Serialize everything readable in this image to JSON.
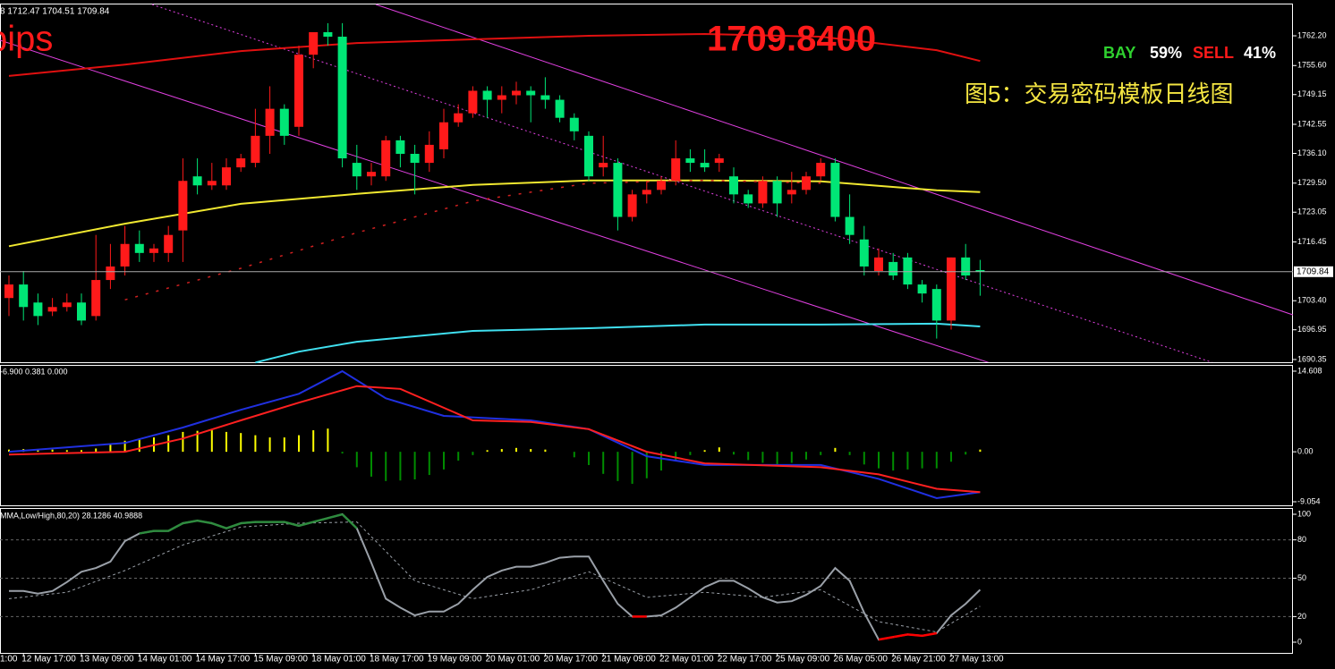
{
  "chart_data": [
    {
      "type": "candlestick",
      "header": "8 1712.47 1704.51 1709.84",
      "pips_label": "pips",
      "price_label": "1709.8400",
      "title": "图5：交易密码模板日线图",
      "buy_label": "BAY",
      "buy_percent": "59%",
      "sell_label": "SELL",
      "sell_percent": "41%",
      "up_color": "#ff1a1a",
      "down_color": "#00e676",
      "open": [
        1704,
        1707,
        1703,
        1701,
        1702,
        1703,
        1700,
        1708,
        1711,
        1716,
        1714,
        1714,
        1719,
        1731,
        1729,
        1729,
        1733,
        1734,
        1740,
        1746,
        1742,
        1758,
        1763,
        1762,
        1734,
        1731,
        1731,
        1739,
        1736,
        1734,
        1737,
        1743,
        1745,
        1750,
        1748,
        1749,
        1750,
        1749,
        1748,
        1744,
        1740,
        1733,
        1734,
        1722,
        1727,
        1728,
        1730,
        1735,
        1734,
        1734,
        1731,
        1727,
        1725,
        1730,
        1727,
        1728,
        1731,
        1734,
        1722,
        1717,
        1710,
        1712,
        1713,
        1707,
        1706,
        1699,
        1713,
        1710.2
      ],
      "high": [
        1709,
        1710,
        1705,
        1704,
        1705,
        1705,
        1718,
        1716,
        1720,
        1719,
        1716,
        1720,
        1735,
        1735,
        1734,
        1735,
        1736,
        1746,
        1751,
        1747,
        1760,
        1763,
        1765,
        1765,
        1738,
        1734,
        1740,
        1740,
        1738,
        1741,
        1746,
        1747,
        1751,
        1751,
        1751,
        1752,
        1751,
        1753,
        1749,
        1745,
        1741,
        1740,
        1735,
        1728,
        1730,
        1731,
        1739,
        1737,
        1737,
        1736,
        1733,
        1728,
        1731,
        1731,
        1732,
        1732,
        1735,
        1735,
        1727,
        1720,
        1715,
        1714,
        1714,
        1708,
        1707,
        1713,
        1716,
        1712.47
      ],
      "low": [
        1700,
        1699,
        1698,
        1700,
        1701,
        1698,
        1699,
        1706,
        1709,
        1712,
        1712,
        1712,
        1712,
        1727,
        1728,
        1728,
        1732,
        1733,
        1736,
        1738,
        1740,
        1755,
        1760,
        1733,
        1728,
        1729,
        1730,
        1733,
        1727,
        1732,
        1735,
        1742,
        1744,
        1744,
        1745,
        1747,
        1743,
        1746,
        1743,
        1739,
        1730,
        1731,
        1719,
        1721,
        1725,
        1727,
        1729,
        1732,
        1732,
        1732,
        1725,
        1724,
        1724,
        1722,
        1725,
        1727,
        1730,
        1721,
        1716,
        1709,
        1709,
        1708,
        1706,
        1703,
        1695,
        1697,
        1708,
        1704.51
      ],
      "close": [
        1707,
        1702,
        1700,
        1702,
        1703,
        1699,
        1708,
        1711,
        1716,
        1714,
        1715,
        1718,
        1730,
        1729,
        1730,
        1733,
        1735,
        1740,
        1746,
        1740,
        1758,
        1763,
        1762,
        1735,
        1731,
        1732,
        1739,
        1736,
        1734,
        1738,
        1743,
        1745,
        1750,
        1748,
        1749,
        1750,
        1749,
        1748,
        1744,
        1741,
        1731,
        1734,
        1722,
        1727,
        1728,
        1730,
        1735,
        1734,
        1733,
        1735,
        1727,
        1725,
        1730,
        1725,
        1728,
        1731,
        1734,
        1722,
        1718,
        1711,
        1713,
        1709,
        1707,
        1705,
        1699,
        1713,
        1709,
        1709.84
      ],
      "series": [
        {
          "color": "#e01010",
          "x": [
            0,
            8,
            16,
            24,
            32,
            40,
            48,
            56,
            64,
            67
          ],
          "values": [
            1753.3,
            1755.8,
            1758.8,
            1760.6,
            1761.4,
            1762.2,
            1762.6,
            1762.0,
            1759.0,
            1756.6
          ]
        },
        {
          "color": "#f0e830",
          "x": [
            0,
            8,
            16,
            24,
            32,
            40,
            48,
            56,
            64,
            67
          ],
          "values": [
            1715.5,
            1720.5,
            1724.9,
            1727.1,
            1729.1,
            1730.1,
            1730.1,
            1729.9,
            1727.9,
            1727.5
          ]
        },
        {
          "color": "#40e0f0",
          "x": [
            17,
            20,
            24,
            28,
            32,
            40,
            48,
            56,
            64,
            67
          ],
          "values": [
            1689.7,
            1692.1,
            1694.3,
            1695.5,
            1696.7,
            1697.3,
            1698.1,
            1698.1,
            1698.3,
            1697.7
          ]
        },
        {
          "color": "#d02020",
          "style": "dotted",
          "x": [
            8,
            16,
            24,
            32,
            40,
            48,
            56
          ],
          "values": [
            1703.6,
            1710.6,
            1718.5,
            1725.5,
            1729.5,
            1730.1,
            1729.5
          ]
        }
      ],
      "current_price": {
        "value": 1709.84,
        "label": "1709.84"
      },
      "ylim": [
        1689.75,
        1769.35
      ],
      "yticks": [
        {
          "value": 1762.2,
          "label": "1762.20"
        },
        {
          "value": 1755.6,
          "label": "1755.60"
        },
        {
          "value": 1749.15,
          "label": "1749.15"
        },
        {
          "value": 1742.55,
          "label": "1742.55"
        },
        {
          "value": 1736.1,
          "label": "1736.10"
        },
        {
          "value": 1729.5,
          "label": "1729.50"
        },
        {
          "value": 1723.05,
          "label": "1723.05"
        },
        {
          "value": 1716.45,
          "label": "1716.45"
        },
        {
          "value": 1703.4,
          "label": "1703.40"
        },
        {
          "value": 1696.95,
          "label": "1696.95"
        },
        {
          "value": 1690.35,
          "label": "1690.35"
        }
      ]
    },
    {
      "type": "histogram-lines",
      "header": "-6.900 0.381 0.000",
      "up_color": "#ffff00",
      "down_color": "#008c00",
      "histogram": [
        0.4,
        0.5,
        0.5,
        0.4,
        0.3,
        0.3,
        0.6,
        1.3,
        2.0,
        2.4,
        2.6,
        3.0,
        3.6,
        3.8,
        3.9,
        3.6,
        3.4,
        3.0,
        2.6,
        2.6,
        3.0,
        3.9,
        4.2,
        -0.3,
        -2.8,
        -4.5,
        -5.3,
        -5.2,
        -5.0,
        -4.2,
        -3.2,
        -1.6,
        -0.6,
        0.3,
        0.5,
        0.7,
        0.5,
        0.4,
        0,
        -1.0,
        -2.4,
        -4.0,
        -5.3,
        -5.8,
        -4.8,
        -3.4,
        -1.7,
        -0.6,
        0.3,
        0.8,
        -0.5,
        -1.5,
        -2.0,
        -2.4,
        -2.0,
        -1.4,
        -0.6,
        0.7,
        -0.6,
        -2.3,
        -3.0,
        -3.4,
        -3.2,
        -3.0,
        -3.0,
        -1.8,
        -0.5,
        0.4
      ],
      "series": [
        {
          "color": "#2030e0",
          "x": [
            0,
            8,
            12,
            16,
            20,
            23,
            26,
            30,
            36,
            40,
            44,
            48,
            56,
            60,
            64,
            67
          ],
          "values": [
            0,
            1.6,
            4.4,
            7.6,
            10.5,
            14.6,
            9.7,
            6.5,
            5.7,
            4.1,
            -0.8,
            -2.4,
            -2.4,
            -4.9,
            -8.4,
            -7.3
          ]
        },
        {
          "color": "#ff2020",
          "x": [
            0,
            8,
            12,
            16,
            20,
            24,
            27,
            32,
            36,
            40,
            44,
            48,
            56,
            60,
            64,
            67
          ],
          "values": [
            -0.5,
            0,
            2.4,
            5.7,
            8.9,
            11.9,
            11.4,
            5.7,
            5.4,
            4.1,
            0,
            -2.1,
            -2.8,
            -4.1,
            -6.7,
            -7.3
          ]
        }
      ],
      "ylim": [
        -9.7,
        15.74
      ],
      "yticks": [
        14.608,
        {
          "value": 0,
          "label": "0.00"
        },
        -9.054
      ]
    },
    {
      "type": "oscillator",
      "header": "MMA,Low/High,80,20) 28.1286 40.9888",
      "high_color": "#2e8b3e",
      "low_color": "#ff0000",
      "levels": [
        80,
        50,
        20
      ],
      "series": [
        {
          "color": "#9aa0a8",
          "values": [
            40,
            40,
            38,
            40,
            47,
            55,
            58,
            63,
            79,
            85,
            87,
            87,
            93,
            95,
            93,
            89,
            93,
            94,
            94,
            94,
            91,
            94,
            97,
            100,
            89,
            62,
            34,
            27,
            21,
            24,
            24,
            30,
            41,
            51,
            56,
            59,
            59,
            62,
            66,
            67,
            67,
            48,
            30,
            20,
            20,
            21,
            27,
            35,
            43,
            48,
            48,
            42,
            35,
            31,
            32,
            37,
            44,
            58,
            48,
            23,
            2,
            4,
            6,
            5,
            7,
            21,
            30,
            40.99
          ]
        },
        {
          "color": "#9aa0a8",
          "style": "dashed",
          "x": [
            0,
            4,
            8,
            12,
            16,
            20,
            24,
            28,
            32,
            36,
            40,
            44,
            48,
            52,
            56,
            60,
            64,
            67
          ],
          "values": [
            34,
            39,
            56,
            76,
            90,
            93,
            94,
            48,
            34,
            41,
            55,
            35,
            39,
            35,
            41,
            16,
            8,
            28.13
          ]
        }
      ],
      "ylim": [
        -8.4,
        104.9
      ],
      "yticks": [
        100,
        80,
        50,
        20,
        0
      ]
    }
  ],
  "time_axis": {
    "labels": [
      "1:00",
      "12 May 17:00",
      "13 May 09:00",
      "14 May 01:00",
      "14 May 17:00",
      "15 May 09:00",
      "18 May 01:00",
      "18 May 17:00",
      "19 May 09:00",
      "20 May 01:00",
      "20 May 17:00",
      "21 May 09:00",
      "22 May 01:00",
      "22 May 17:00",
      "25 May 09:00",
      "26 May 05:00",
      "26 May 21:00",
      "27 May 13:00"
    ]
  }
}
